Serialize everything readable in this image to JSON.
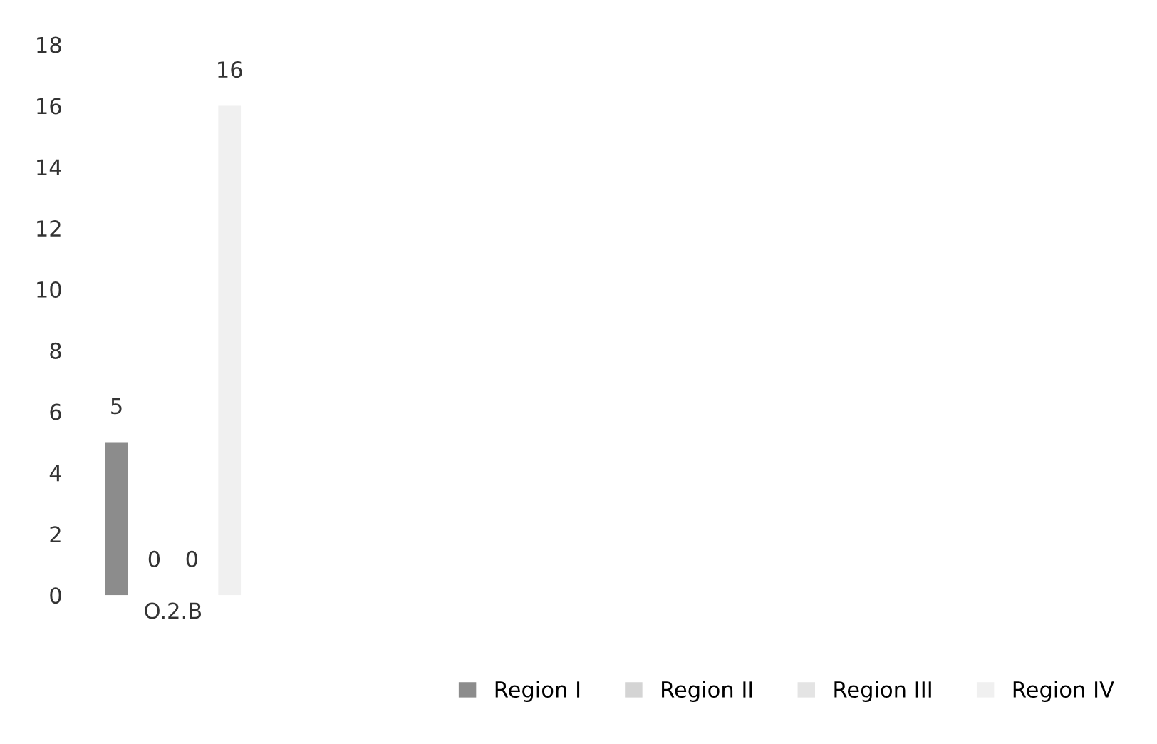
{
  "chart_data": {
    "type": "bar",
    "categories": [
      "O.2.B"
    ],
    "series": [
      {
        "name": "Region I",
        "color": "#8c8c8c",
        "values": [
          5
        ]
      },
      {
        "name": "Region II",
        "color": "#d4d4d4",
        "values": [
          0
        ]
      },
      {
        "name": "Region III",
        "color": "#e4e4e4",
        "values": [
          0
        ]
      },
      {
        "name": "Region IV",
        "color": "#f0f0f0",
        "values": [
          16
        ]
      }
    ],
    "ylim": [
      0,
      18
    ],
    "yticks": [
      0,
      2,
      4,
      6,
      8,
      10,
      12,
      14,
      16,
      18
    ],
    "data_labels": true,
    "grid": false,
    "legend": "bottom right"
  }
}
